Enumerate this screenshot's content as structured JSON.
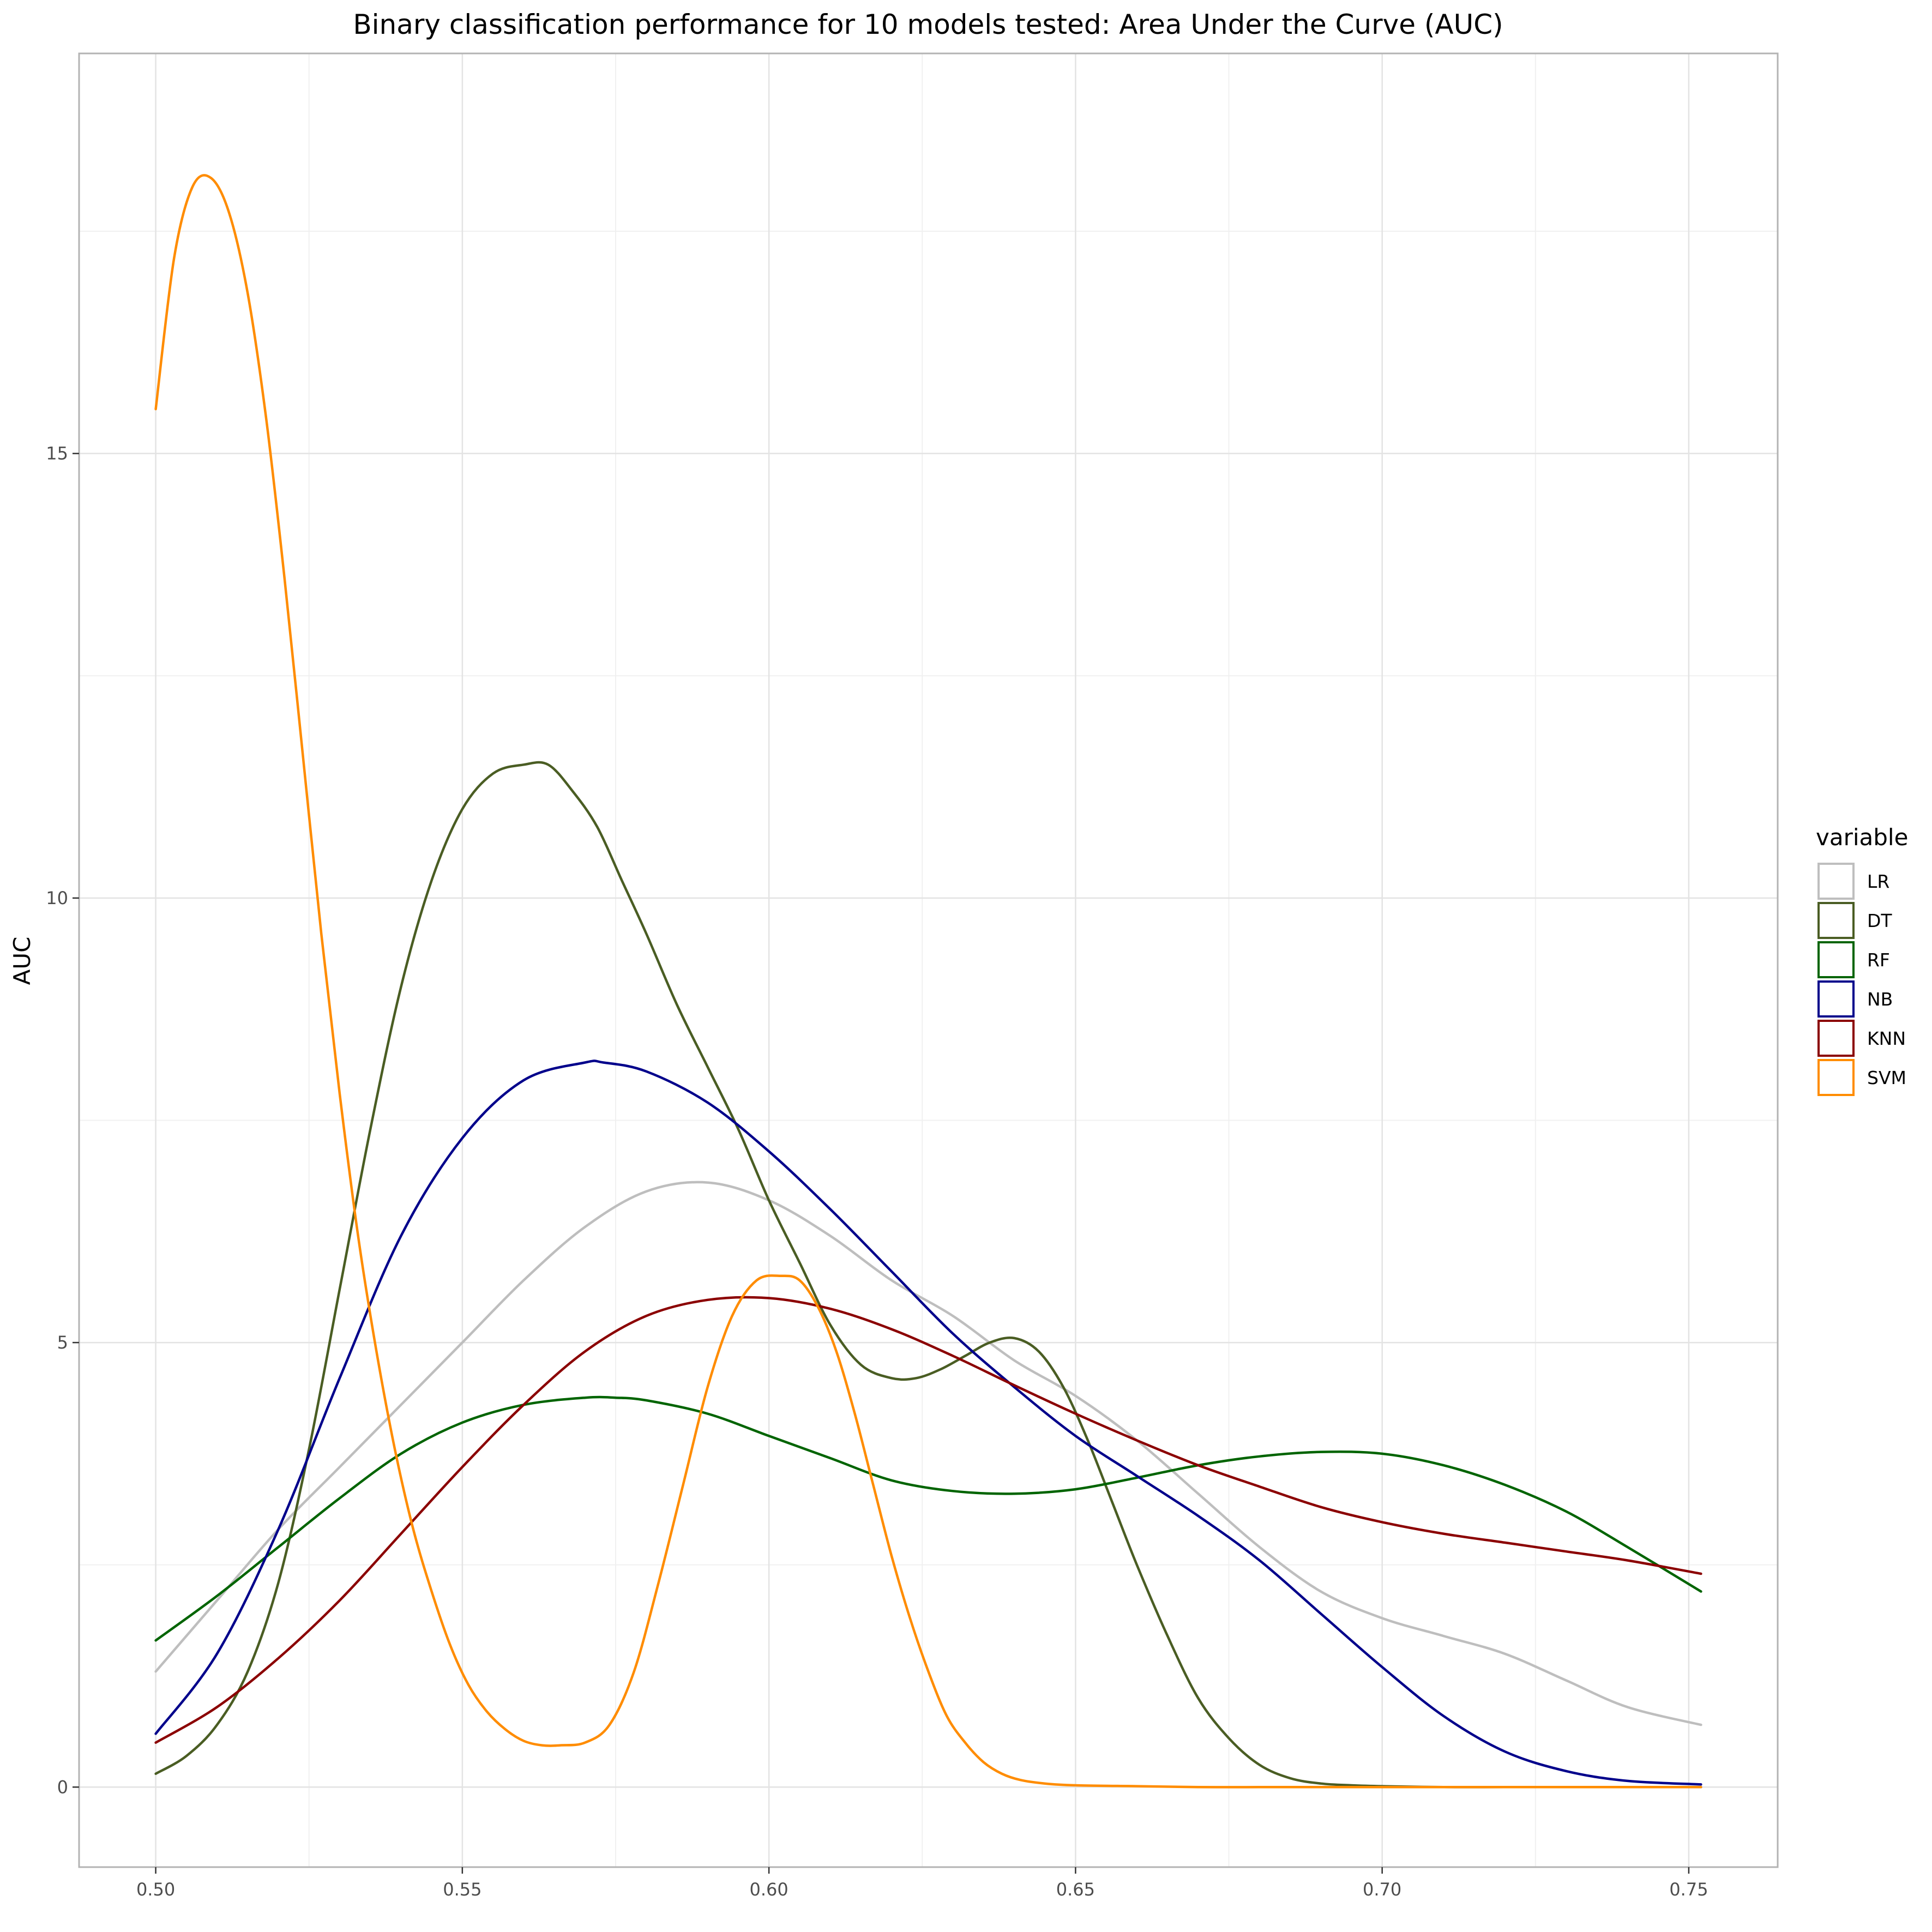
{
  "chart_data": {
    "type": "line",
    "title": "Binary classification performance for 10 models tested: Area Under the Curve (AUC)",
    "xlabel": "",
    "ylabel": "AUC",
    "xlim": [
      0.4875,
      0.7645
    ],
    "ylim": [
      -0.9,
      19.5
    ],
    "x_ticks": [
      0.5,
      0.55,
      0.6,
      0.65,
      0.7,
      0.75
    ],
    "x_tick_labels": [
      "0.50",
      "0.55",
      "0.60",
      "0.65",
      "0.70",
      "0.75"
    ],
    "y_ticks": [
      0,
      5,
      10,
      15
    ],
    "y_tick_labels": [
      "0",
      "5",
      "10",
      "15"
    ],
    "grid": true,
    "legend": {
      "title": "variable",
      "position": "right"
    },
    "series": [
      {
        "name": "LR",
        "color": "#BEBEBE",
        "x": [
          0.5,
          0.51,
          0.52,
          0.53,
          0.54,
          0.55,
          0.56,
          0.57,
          0.58,
          0.59,
          0.6,
          0.61,
          0.62,
          0.63,
          0.64,
          0.65,
          0.66,
          0.67,
          0.68,
          0.69,
          0.7,
          0.71,
          0.72,
          0.73,
          0.74,
          0.752
        ],
        "y": [
          1.3,
          2.1,
          2.9,
          3.6,
          4.3,
          5.0,
          5.7,
          6.3,
          6.7,
          6.8,
          6.6,
          6.2,
          5.7,
          5.3,
          4.8,
          4.4,
          3.9,
          3.3,
          2.7,
          2.2,
          1.9,
          1.7,
          1.5,
          1.2,
          0.9,
          0.7
        ]
      },
      {
        "name": "DT",
        "color": "#4A5D23",
        "x": [
          0.5,
          0.505,
          0.51,
          0.515,
          0.52,
          0.525,
          0.53,
          0.535,
          0.54,
          0.545,
          0.55,
          0.555,
          0.56,
          0.564,
          0.568,
          0.572,
          0.576,
          0.58,
          0.585,
          0.59,
          0.595,
          0.6,
          0.605,
          0.61,
          0.615,
          0.62,
          0.624,
          0.628,
          0.632,
          0.636,
          0.64,
          0.644,
          0.648,
          0.652,
          0.656,
          0.66,
          0.665,
          0.67,
          0.675,
          0.68,
          0.685,
          0.69,
          0.695,
          0.7,
          0.71,
          0.72,
          0.73,
          0.74,
          0.752
        ],
        "y": [
          0.15,
          0.35,
          0.7,
          1.3,
          2.3,
          3.8,
          5.6,
          7.4,
          9.0,
          10.2,
          11.0,
          11.4,
          11.5,
          11.5,
          11.2,
          10.8,
          10.2,
          9.6,
          8.8,
          8.1,
          7.4,
          6.6,
          5.9,
          5.2,
          4.75,
          4.6,
          4.6,
          4.7,
          4.85,
          5.0,
          5.05,
          4.9,
          4.5,
          3.9,
          3.2,
          2.5,
          1.7,
          1.0,
          0.55,
          0.25,
          0.1,
          0.04,
          0.02,
          0.01,
          0.0,
          0.0,
          0.0,
          0.0,
          0.0
        ]
      },
      {
        "name": "RF",
        "color": "#006400",
        "x": [
          0.5,
          0.51,
          0.52,
          0.53,
          0.54,
          0.55,
          0.56,
          0.57,
          0.575,
          0.58,
          0.59,
          0.6,
          0.61,
          0.62,
          0.63,
          0.64,
          0.65,
          0.66,
          0.67,
          0.68,
          0.69,
          0.7,
          0.71,
          0.72,
          0.73,
          0.74,
          0.752
        ],
        "y": [
          1.65,
          2.15,
          2.7,
          3.25,
          3.75,
          4.1,
          4.3,
          4.38,
          4.38,
          4.35,
          4.2,
          3.95,
          3.7,
          3.45,
          3.33,
          3.3,
          3.35,
          3.48,
          3.62,
          3.72,
          3.77,
          3.75,
          3.62,
          3.4,
          3.1,
          2.7,
          2.2
        ]
      },
      {
        "name": "NB",
        "color": "#00008B",
        "x": [
          0.5,
          0.51,
          0.52,
          0.53,
          0.54,
          0.55,
          0.56,
          0.57,
          0.573,
          0.58,
          0.59,
          0.6,
          0.61,
          0.62,
          0.63,
          0.64,
          0.65,
          0.66,
          0.67,
          0.68,
          0.69,
          0.7,
          0.71,
          0.72,
          0.73,
          0.74,
          0.752
        ],
        "y": [
          0.6,
          1.5,
          2.9,
          4.6,
          6.2,
          7.3,
          7.95,
          8.15,
          8.15,
          8.05,
          7.7,
          7.15,
          6.5,
          5.8,
          5.1,
          4.5,
          3.95,
          3.5,
          3.05,
          2.55,
          1.95,
          1.35,
          0.8,
          0.4,
          0.18,
          0.07,
          0.03
        ]
      },
      {
        "name": "KNN",
        "color": "#8B0000",
        "x": [
          0.5,
          0.51,
          0.52,
          0.53,
          0.54,
          0.55,
          0.56,
          0.57,
          0.58,
          0.59,
          0.6,
          0.61,
          0.62,
          0.63,
          0.64,
          0.65,
          0.66,
          0.67,
          0.68,
          0.69,
          0.7,
          0.71,
          0.72,
          0.73,
          0.74,
          0.752
        ],
        "y": [
          0.5,
          0.9,
          1.45,
          2.1,
          2.85,
          3.6,
          4.3,
          4.9,
          5.3,
          5.48,
          5.5,
          5.38,
          5.15,
          4.85,
          4.52,
          4.2,
          3.9,
          3.62,
          3.38,
          3.15,
          2.98,
          2.85,
          2.75,
          2.65,
          2.55,
          2.4
        ]
      },
      {
        "name": "SVM",
        "color": "#FF8C00",
        "x": [
          0.5,
          0.503,
          0.506,
          0.509,
          0.512,
          0.515,
          0.518,
          0.521,
          0.524,
          0.527,
          0.53,
          0.533,
          0.536,
          0.539,
          0.542,
          0.545,
          0.548,
          0.551,
          0.554,
          0.557,
          0.56,
          0.563,
          0.566,
          0.57,
          0.574,
          0.578,
          0.582,
          0.586,
          0.59,
          0.594,
          0.598,
          0.602,
          0.605,
          0.608,
          0.611,
          0.614,
          0.617,
          0.62,
          0.623,
          0.626,
          0.629,
          0.632,
          0.635,
          0.638,
          0.641,
          0.645,
          0.65,
          0.66,
          0.67,
          0.68,
          0.7,
          0.72,
          0.752
        ],
        "y": [
          15.5,
          17.2,
          18.0,
          18.1,
          17.7,
          16.8,
          15.4,
          13.6,
          11.6,
          9.6,
          7.8,
          6.2,
          4.9,
          3.8,
          2.9,
          2.2,
          1.6,
          1.15,
          0.85,
          0.65,
          0.52,
          0.47,
          0.47,
          0.5,
          0.7,
          1.3,
          2.3,
          3.4,
          4.5,
          5.3,
          5.7,
          5.75,
          5.7,
          5.4,
          4.9,
          4.2,
          3.4,
          2.6,
          1.9,
          1.3,
          0.8,
          0.5,
          0.28,
          0.15,
          0.08,
          0.04,
          0.02,
          0.01,
          0.0,
          0.0,
          0.0,
          0.0,
          0.0
        ]
      }
    ]
  }
}
